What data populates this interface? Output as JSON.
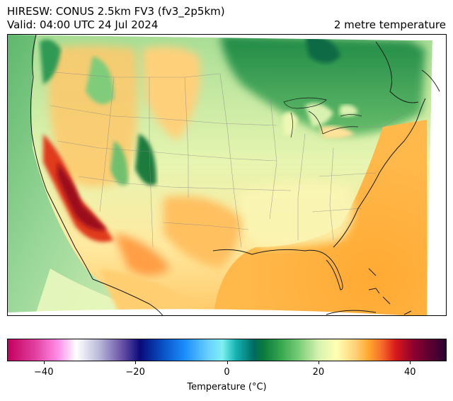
{
  "header": {
    "title_line1": "HIRESW: CONUS 2.5km FV3 (fv3_2p5km)",
    "title_line2": "Valid: 04:00 UTC 24 Jul 2024",
    "title_right": "2 metre temperature"
  },
  "colorbar": {
    "label": "Temperature (°C)",
    "range": [
      -48,
      48
    ],
    "ticks": [
      -40,
      -20,
      0,
      20,
      40
    ],
    "tick_labels": [
      "−40",
      "−20",
      "0",
      "20",
      "40"
    ],
    "stops": [
      {
        "v": -48,
        "color": "#c5005f"
      },
      {
        "v": -42,
        "color": "#e040a0"
      },
      {
        "v": -37,
        "color": "#ff8ee6"
      },
      {
        "v": -33,
        "color": "#ffffff"
      },
      {
        "v": -28,
        "color": "#b9b9d9"
      },
      {
        "v": -23,
        "color": "#6a53a6"
      },
      {
        "v": -19,
        "color": "#0a0a7a"
      },
      {
        "v": -14,
        "color": "#0752c4"
      },
      {
        "v": -9,
        "color": "#1e90ff"
      },
      {
        "v": -4,
        "color": "#6ad0ff"
      },
      {
        "v": -1,
        "color": "#7ff0f0"
      },
      {
        "v": 2,
        "color": "#14b3b3"
      },
      {
        "v": 6,
        "color": "#006a60"
      },
      {
        "v": 8,
        "color": "#0b7a3a"
      },
      {
        "v": 12,
        "color": "#38a84f"
      },
      {
        "v": 16,
        "color": "#7ccf7a"
      },
      {
        "v": 20,
        "color": "#d6f2b0"
      },
      {
        "v": 24,
        "color": "#ffffb2"
      },
      {
        "v": 28,
        "color": "#ffd37a"
      },
      {
        "v": 31,
        "color": "#ffa930"
      },
      {
        "v": 34,
        "color": "#f56a2a"
      },
      {
        "v": 37,
        "color": "#d7191c"
      },
      {
        "v": 41,
        "color": "#8c0030"
      },
      {
        "v": 48,
        "color": "#2a0030"
      }
    ]
  }
}
